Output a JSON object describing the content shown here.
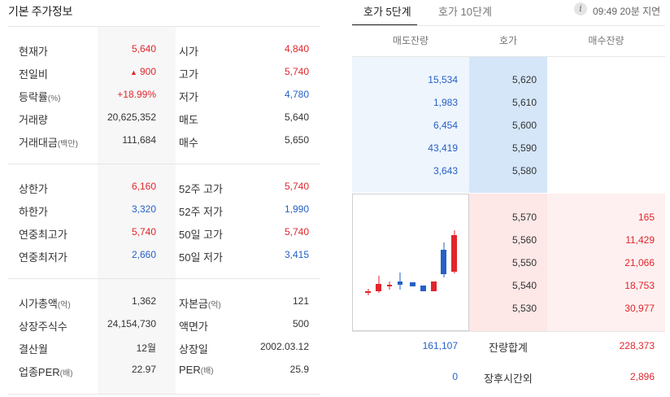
{
  "basic": {
    "title": "기본 주가정보",
    "section1": [
      {
        "l1": "현재가",
        "l1_unit": "",
        "v1": "5,640",
        "c1": "up",
        "tri1": "",
        "l2": "시가",
        "l2_unit": "",
        "v2": "4,840",
        "c2": "up"
      },
      {
        "l1": "전일비",
        "l1_unit": "",
        "v1": "900",
        "c1": "up",
        "tri1": "▲",
        "l2": "고가",
        "l2_unit": "",
        "v2": "5,740",
        "c2": "up"
      },
      {
        "l1": "등락률",
        "l1_unit": "(%)",
        "v1": "+18.99%",
        "c1": "up",
        "tri1": "",
        "l2": "저가",
        "l2_unit": "",
        "v2": "4,780",
        "c2": "down"
      },
      {
        "l1": "거래량",
        "l1_unit": "",
        "v1": "20,625,352",
        "c1": "",
        "tri1": "",
        "l2": "매도",
        "l2_unit": "",
        "v2": "5,640",
        "c2": ""
      },
      {
        "l1": "거래대금",
        "l1_unit": "(백만)",
        "v1": "111,684",
        "c1": "",
        "tri1": "",
        "l2": "매수",
        "l2_unit": "",
        "v2": "5,650",
        "c2": ""
      }
    ],
    "section2": [
      {
        "l1": "상한가",
        "l1_unit": "",
        "v1": "6,160",
        "c1": "up",
        "tri1": "",
        "l2": "52주 고가",
        "l2_unit": "",
        "v2": "5,740",
        "c2": "up"
      },
      {
        "l1": "하한가",
        "l1_unit": "",
        "v1": "3,320",
        "c1": "down",
        "tri1": "",
        "l2": "52주 저가",
        "l2_unit": "",
        "v2": "1,990",
        "c2": "down"
      },
      {
        "l1": "연중최고가",
        "l1_unit": "",
        "v1": "5,740",
        "c1": "up",
        "tri1": "",
        "l2": "50일 고가",
        "l2_unit": "",
        "v2": "5,740",
        "c2": "up"
      },
      {
        "l1": "연중최저가",
        "l1_unit": "",
        "v1": "2,660",
        "c1": "down",
        "tri1": "",
        "l2": "50일 저가",
        "l2_unit": "",
        "v2": "3,415",
        "c2": "down"
      }
    ],
    "section3": [
      {
        "l1": "시가총액",
        "l1_unit": "(억)",
        "v1": "1,362",
        "c1": "",
        "tri1": "",
        "l2": "자본금",
        "l2_unit": "(억)",
        "v2": "121",
        "c2": ""
      },
      {
        "l1": "상장주식수",
        "l1_unit": "",
        "v1": "24,154,730",
        "c1": "",
        "tri1": "",
        "l2": "액면가",
        "l2_unit": "",
        "v2": "500",
        "c2": ""
      },
      {
        "l1": "결산월",
        "l1_unit": "",
        "v1": "12월",
        "c1": "",
        "tri1": "",
        "l2": "상장일",
        "l2_unit": "",
        "v2": "2002.03.12",
        "c2": ""
      },
      {
        "l1": "업종PER",
        "l1_unit": "(배)",
        "v1": "22.97",
        "c1": "",
        "tri1": "",
        "l2": "PER",
        "l2_unit": "(배)",
        "v2": "25.9",
        "c2": ""
      }
    ]
  },
  "orderbook": {
    "tabs": [
      "호가 5단계",
      "호가 10단계"
    ],
    "info_icon_glyph": "i",
    "delay_text": "09:49 20분 지연",
    "headers": {
      "ask_vol": "매도잔량",
      "price": "호가",
      "bid_vol": "매수잔량"
    },
    "asks": [
      {
        "vol": "15,534",
        "price": "5,620"
      },
      {
        "vol": "1,983",
        "price": "5,610"
      },
      {
        "vol": "6,454",
        "price": "5,600"
      },
      {
        "vol": "43,419",
        "price": "5,590"
      },
      {
        "vol": "3,643",
        "price": "5,580"
      }
    ],
    "bids": [
      {
        "price": "5,570",
        "vol": "165"
      },
      {
        "price": "5,560",
        "vol": "11,429"
      },
      {
        "price": "5,550",
        "vol": "21,066"
      },
      {
        "price": "5,540",
        "vol": "18,753"
      },
      {
        "price": "5,530",
        "vol": "30,977"
      }
    ],
    "totals": {
      "ask": "161,107",
      "label": "잔량합계",
      "bid": "228,373"
    },
    "after_hours": {
      "ask": "0",
      "label": "장후시간외",
      "bid": "2,896"
    }
  },
  "colors": {
    "up": "#e0252c",
    "down": "#2660c6"
  }
}
